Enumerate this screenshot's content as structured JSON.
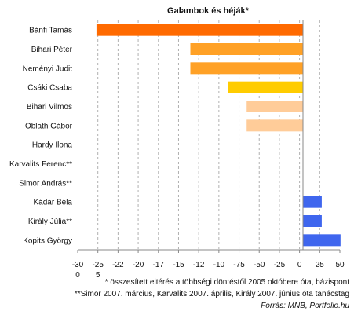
{
  "chart_data": {
    "type": "bar",
    "orientation": "horizontal",
    "title": "Galambok és héják*",
    "categories": [
      "Bánfi Tamás",
      "Bihari Péter",
      "Neményi Judit",
      "Csáki Csaba",
      "Bihari Vilmos",
      "Oblath Gábor",
      "Hardy Ilona",
      "Karvalits Ferenc**",
      "Simor András**",
      "Kádár Béla",
      "Király Júlia**",
      "Kopits György"
    ],
    "values": [
      -27.5,
      -15,
      -15,
      -10,
      -7.5,
      -7.5,
      0,
      0,
      0,
      2.5,
      2.5,
      5
    ],
    "bar_colors": [
      "#ff6a00",
      "#ffa126",
      "#ffa126",
      "#ffcc00",
      "#ffcc99",
      "#ffcc99",
      "#cccccc",
      "#cccccc",
      "#cccccc",
      "#3f66ee",
      "#3f66ee",
      "#3f66ee"
    ],
    "x_tick_labels": [
      "-30",
      "-25",
      "-22",
      "-20",
      "-17",
      "-15",
      "-12",
      "-10",
      "-75",
      "-50",
      "-25",
      "0",
      "25",
      "50"
    ],
    "x_tick_labels_row2": [
      "0",
      "5"
    ],
    "xlim": [
      -30,
      5
    ],
    "grid": true,
    "grid_style": "dashed vertical",
    "footnotes": [
      "* összesített eltérés a többségi döntéstől 2005 októbere óta, bázispont",
      "**Simor 2007. március, Karvalits 2007. április, Király 2007. június óta tanácstag"
    ],
    "source": "Forrás: MNB, Portfolio.hu"
  }
}
